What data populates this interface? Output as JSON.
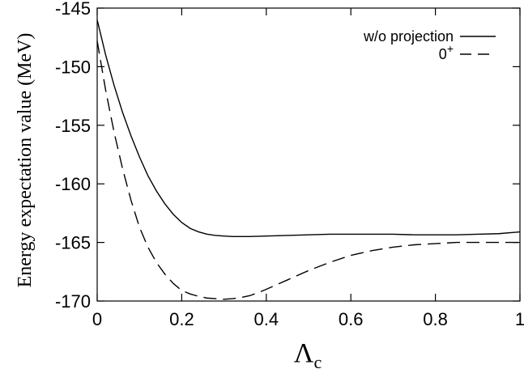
{
  "chart_data": {
    "type": "line",
    "title": "",
    "xlabel": "Λ",
    "xlabel_subscript": "c",
    "ylabel": "Energy expectation value (MeV)",
    "xlim": [
      0,
      1
    ],
    "ylim": [
      -170,
      -145
    ],
    "x_ticks": [
      "0",
      "0.2",
      "0.4",
      "0.6",
      "0.8",
      "1"
    ],
    "y_ticks": [
      "-145",
      "-150",
      "-155",
      "-160",
      "-165",
      "-170"
    ],
    "grid": false,
    "legend_position": "top-right",
    "series": [
      {
        "name": "w/o projection",
        "style": "solid",
        "color": "#000000",
        "x": [
          0.0,
          0.02,
          0.04,
          0.06,
          0.08,
          0.1,
          0.12,
          0.14,
          0.16,
          0.18,
          0.2,
          0.22,
          0.24,
          0.26,
          0.28,
          0.3,
          0.32,
          0.34,
          0.36,
          0.4,
          0.45,
          0.5,
          0.55,
          0.6,
          0.65,
          0.7,
          0.75,
          0.8,
          0.85,
          0.9,
          0.95,
          1.0
        ],
        "y": [
          -146.0,
          -149.0,
          -151.6,
          -153.9,
          -155.9,
          -157.7,
          -159.3,
          -160.6,
          -161.7,
          -162.6,
          -163.3,
          -163.8,
          -164.1,
          -164.3,
          -164.4,
          -164.45,
          -164.5,
          -164.5,
          -164.5,
          -164.45,
          -164.4,
          -164.35,
          -164.3,
          -164.3,
          -164.3,
          -164.3,
          -164.35,
          -164.35,
          -164.35,
          -164.3,
          -164.25,
          -164.1
        ]
      },
      {
        "name": "0+",
        "style": "dashed",
        "color": "#000000",
        "x": [
          0.0,
          0.02,
          0.04,
          0.06,
          0.08,
          0.1,
          0.12,
          0.14,
          0.16,
          0.18,
          0.2,
          0.22,
          0.24,
          0.26,
          0.28,
          0.3,
          0.32,
          0.34,
          0.36,
          0.38,
          0.4,
          0.45,
          0.5,
          0.55,
          0.6,
          0.65,
          0.7,
          0.75,
          0.8,
          0.85,
          0.9,
          0.95,
          1.0
        ],
        "y": [
          -147.8,
          -152.0,
          -155.6,
          -158.7,
          -161.4,
          -163.7,
          -165.4,
          -166.7,
          -167.7,
          -168.5,
          -169.1,
          -169.4,
          -169.6,
          -169.75,
          -169.8,
          -169.85,
          -169.8,
          -169.7,
          -169.55,
          -169.3,
          -169.0,
          -168.2,
          -167.4,
          -166.7,
          -166.1,
          -165.7,
          -165.4,
          -165.2,
          -165.1,
          -165.0,
          -165.0,
          -165.0,
          -165.0
        ]
      }
    ]
  }
}
